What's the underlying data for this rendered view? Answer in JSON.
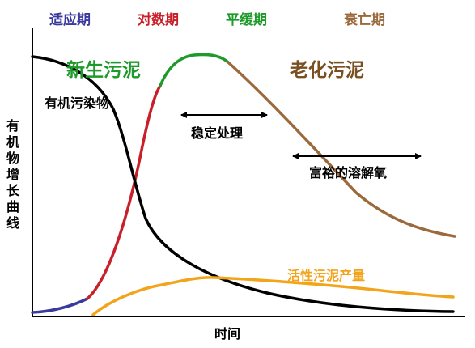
{
  "phases": {
    "lag": "适应期",
    "log": "对数期",
    "stationary": "平缓期",
    "decline": "衰亡期"
  },
  "colors": {
    "lag": "#3a3a9e",
    "log": "#c8202a",
    "stationary": "#1e9a2a",
    "decline": "#9b6a3c",
    "organic": "#000000",
    "active": "#f2a41a"
  },
  "labels": {
    "new_sludge": "新生污泥",
    "aged_sludge": "老化污泥",
    "organic_matter": "有机污染物",
    "stable_treatment": "稳定处理",
    "rich_do": "富裕的溶解氧",
    "active_sludge_yield": "活性污泥产量"
  },
  "axes": {
    "y_title": [
      "有",
      "机",
      "物",
      "增",
      "长",
      "曲",
      "线"
    ],
    "x_title": "时间"
  }
}
